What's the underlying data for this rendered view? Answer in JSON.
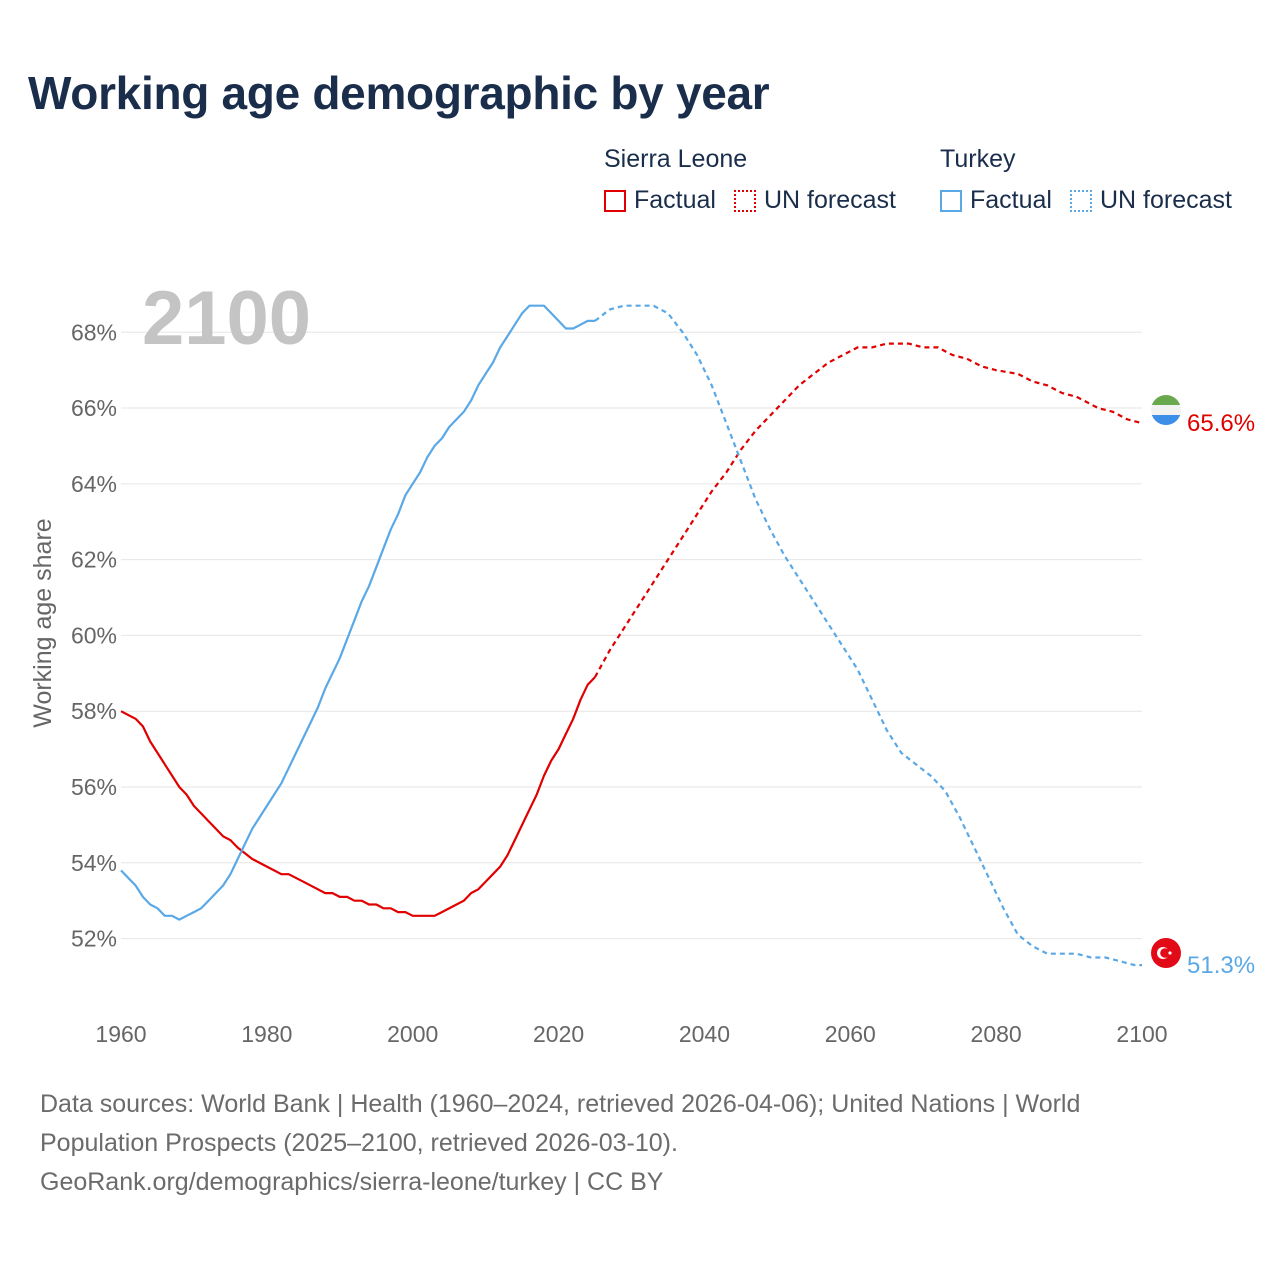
{
  "title": "Working age demographic by year",
  "legend": {
    "groups": [
      {
        "country": "Sierra Leone",
        "factual": "Factual",
        "forecast": "UN forecast",
        "color": "#e00000"
      },
      {
        "country": "Turkey",
        "factual": "Factual",
        "forecast": "UN forecast",
        "color": "#5aa8e6"
      }
    ]
  },
  "footer": {
    "line1": "Data sources: World Bank | Health (1960–2024, retrieved 2026-04-06); United Nations | World",
    "line2": "Population Prospects (2025–2100, retrieved 2026-03-10).",
    "line3": "GeoRank.org/demographics/sierra-leone/turkey | CC BY"
  },
  "chart_data": {
    "type": "line",
    "title": "Working age demographic by year",
    "year_watermark": "2100",
    "xlabel": "",
    "ylabel": "Working age share",
    "xlim": [
      1960,
      2100
    ],
    "ylim": [
      50.3,
      69.3
    ],
    "x_ticks": [
      1960,
      1980,
      2000,
      2020,
      2040,
      2060,
      2080,
      2100
    ],
    "y_ticks": [
      52,
      54,
      56,
      58,
      60,
      62,
      64,
      66,
      68
    ],
    "y_tick_suffix": "%",
    "grid": true,
    "series": [
      {
        "name": "Sierra Leone",
        "color": "#e00000",
        "end_label": "65.6%",
        "factual": [
          [
            1960,
            58.0
          ],
          [
            1962,
            57.8
          ],
          [
            1963,
            57.6
          ],
          [
            1964,
            57.2
          ],
          [
            1966,
            56.6
          ],
          [
            1968,
            56.0
          ],
          [
            1969,
            55.8
          ],
          [
            1970,
            55.5
          ],
          [
            1972,
            55.1
          ],
          [
            1974,
            54.7
          ],
          [
            1975,
            54.6
          ],
          [
            1976,
            54.4
          ],
          [
            1978,
            54.1
          ],
          [
            1980,
            53.9
          ],
          [
            1982,
            53.7
          ],
          [
            1983,
            53.7
          ],
          [
            1985,
            53.5
          ],
          [
            1988,
            53.2
          ],
          [
            1989,
            53.2
          ],
          [
            1990,
            53.1
          ],
          [
            1991,
            53.1
          ],
          [
            1992,
            53.0
          ],
          [
            1993,
            53.0
          ],
          [
            1994,
            52.9
          ],
          [
            1995,
            52.9
          ],
          [
            1996,
            52.8
          ],
          [
            1997,
            52.8
          ],
          [
            1998,
            52.7
          ],
          [
            1999,
            52.7
          ],
          [
            2000,
            52.6
          ],
          [
            2001,
            52.6
          ],
          [
            2003,
            52.6
          ],
          [
            2004,
            52.7
          ],
          [
            2006,
            52.9
          ],
          [
            2007,
            53.0
          ],
          [
            2008,
            53.2
          ],
          [
            2009,
            53.3
          ],
          [
            2010,
            53.5
          ],
          [
            2011,
            53.7
          ],
          [
            2012,
            53.9
          ],
          [
            2013,
            54.2
          ],
          [
            2014,
            54.6
          ],
          [
            2015,
            55.0
          ],
          [
            2016,
            55.4
          ],
          [
            2017,
            55.8
          ],
          [
            2018,
            56.3
          ],
          [
            2019,
            56.7
          ],
          [
            2020,
            57.0
          ],
          [
            2021,
            57.4
          ],
          [
            2022,
            57.8
          ],
          [
            2023,
            58.3
          ],
          [
            2024,
            58.7
          ],
          [
            2025,
            58.9
          ]
        ],
        "forecast": [
          [
            2025,
            58.9
          ],
          [
            2027,
            59.6
          ],
          [
            2029,
            60.2
          ],
          [
            2031,
            60.8
          ],
          [
            2033,
            61.4
          ],
          [
            2035,
            62.0
          ],
          [
            2037,
            62.6
          ],
          [
            2039,
            63.2
          ],
          [
            2041,
            63.8
          ],
          [
            2043,
            64.3
          ],
          [
            2045,
            64.9
          ],
          [
            2047,
            65.4
          ],
          [
            2049,
            65.8
          ],
          [
            2051,
            66.2
          ],
          [
            2053,
            66.6
          ],
          [
            2055,
            66.9
          ],
          [
            2057,
            67.2
          ],
          [
            2059,
            67.4
          ],
          [
            2061,
            67.6
          ],
          [
            2063,
            67.6
          ],
          [
            2065,
            67.7
          ],
          [
            2068,
            67.7
          ],
          [
            2070,
            67.6
          ],
          [
            2072,
            67.6
          ],
          [
            2074,
            67.4
          ],
          [
            2076,
            67.3
          ],
          [
            2078,
            67.1
          ],
          [
            2080,
            67.0
          ],
          [
            2083,
            66.9
          ],
          [
            2085,
            66.7
          ],
          [
            2087,
            66.6
          ],
          [
            2089,
            66.4
          ],
          [
            2091,
            66.3
          ],
          [
            2094,
            66.0
          ],
          [
            2096,
            65.9
          ],
          [
            2098,
            65.7
          ],
          [
            2100,
            65.6
          ]
        ]
      },
      {
        "name": "Turkey",
        "color": "#5aa8e6",
        "end_label": "51.3%",
        "factual": [
          [
            1960,
            53.8
          ],
          [
            1962,
            53.4
          ],
          [
            1963,
            53.1
          ],
          [
            1964,
            52.9
          ],
          [
            1965,
            52.8
          ],
          [
            1966,
            52.6
          ],
          [
            1967,
            52.6
          ],
          [
            1968,
            52.5
          ],
          [
            1969,
            52.6
          ],
          [
            1970,
            52.7
          ],
          [
            1971,
            52.8
          ],
          [
            1972,
            53.0
          ],
          [
            1973,
            53.2
          ],
          [
            1974,
            53.4
          ],
          [
            1975,
            53.7
          ],
          [
            1976,
            54.1
          ],
          [
            1977,
            54.5
          ],
          [
            1978,
            54.9
          ],
          [
            1980,
            55.5
          ],
          [
            1982,
            56.1
          ],
          [
            1984,
            56.9
          ],
          [
            1986,
            57.7
          ],
          [
            1987,
            58.1
          ],
          [
            1988,
            58.6
          ],
          [
            1990,
            59.4
          ],
          [
            1991,
            59.9
          ],
          [
            1992,
            60.4
          ],
          [
            1993,
            60.9
          ],
          [
            1994,
            61.3
          ],
          [
            1995,
            61.8
          ],
          [
            1996,
            62.3
          ],
          [
            1997,
            62.8
          ],
          [
            1998,
            63.2
          ],
          [
            1999,
            63.7
          ],
          [
            2000,
            64.0
          ],
          [
            2001,
            64.3
          ],
          [
            2002,
            64.7
          ],
          [
            2003,
            65.0
          ],
          [
            2004,
            65.2
          ],
          [
            2005,
            65.5
          ],
          [
            2006,
            65.7
          ],
          [
            2007,
            65.9
          ],
          [
            2008,
            66.2
          ],
          [
            2009,
            66.6
          ],
          [
            2010,
            66.9
          ],
          [
            2011,
            67.2
          ],
          [
            2012,
            67.6
          ],
          [
            2013,
            67.9
          ],
          [
            2014,
            68.2
          ],
          [
            2015,
            68.5
          ],
          [
            2016,
            68.7
          ],
          [
            2017,
            68.7
          ],
          [
            2018,
            68.7
          ],
          [
            2019,
            68.5
          ],
          [
            2020,
            68.3
          ],
          [
            2021,
            68.1
          ],
          [
            2022,
            68.1
          ],
          [
            2023,
            68.2
          ],
          [
            2024,
            68.3
          ],
          [
            2025,
            68.3
          ]
        ],
        "forecast": [
          [
            2025,
            68.3
          ],
          [
            2027,
            68.6
          ],
          [
            2029,
            68.7
          ],
          [
            2031,
            68.7
          ],
          [
            2033,
            68.7
          ],
          [
            2035,
            68.5
          ],
          [
            2037,
            68.0
          ],
          [
            2039,
            67.4
          ],
          [
            2041,
            66.6
          ],
          [
            2043,
            65.6
          ],
          [
            2045,
            64.6
          ],
          [
            2047,
            63.6
          ],
          [
            2049,
            62.8
          ],
          [
            2051,
            62.1
          ],
          [
            2053,
            61.5
          ],
          [
            2055,
            60.9
          ],
          [
            2057,
            60.3
          ],
          [
            2059,
            59.7
          ],
          [
            2061,
            59.1
          ],
          [
            2063,
            58.3
          ],
          [
            2065,
            57.5
          ],
          [
            2067,
            56.9
          ],
          [
            2069,
            56.6
          ],
          [
            2071,
            56.3
          ],
          [
            2073,
            55.9
          ],
          [
            2075,
            55.2
          ],
          [
            2077,
            54.4
          ],
          [
            2079,
            53.6
          ],
          [
            2081,
            52.8
          ],
          [
            2083,
            52.1
          ],
          [
            2085,
            51.8
          ],
          [
            2087,
            51.6
          ],
          [
            2089,
            51.6
          ],
          [
            2091,
            51.6
          ],
          [
            2093,
            51.5
          ],
          [
            2095,
            51.5
          ],
          [
            2097,
            51.4
          ],
          [
            2099,
            51.3
          ],
          [
            2100,
            51.3
          ]
        ]
      }
    ]
  }
}
